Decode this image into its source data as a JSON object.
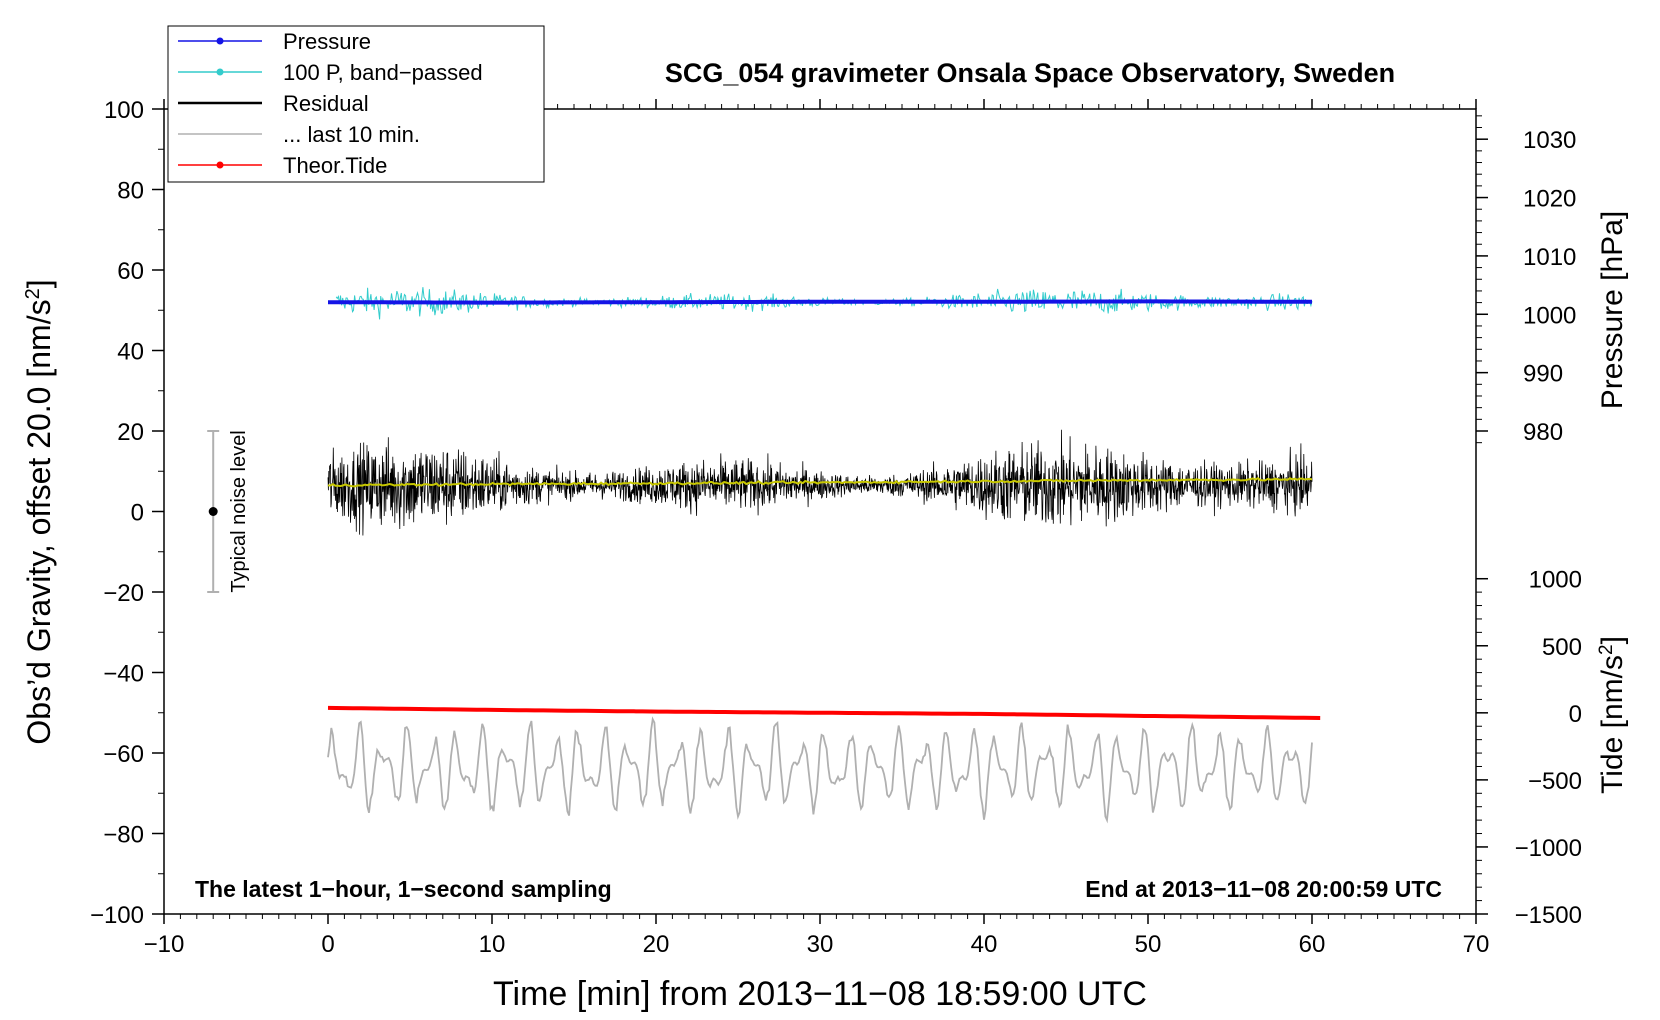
{
  "chart_data": {
    "type": "line",
    "title": "SCG_054 gravimeter Onsala Space Observatory, Sweden",
    "xlabel": "Time [min] from 2013−11−08 18:59:00 UTC",
    "ylabel_left": "Obs’d Gravity, offset 20.0 [nm/s",
    "ylabel_left_sup": "2",
    "ylabel_left_close": "]",
    "ylabel_pressure": "Pressure [hPa]",
    "ylabel_tide": "Tide [nm/s",
    "ylabel_tide_sup": "2",
    "ylabel_tide_close": "]",
    "xlim": [
      -10,
      70
    ],
    "ylim": [
      -100,
      100
    ],
    "x_ticks": [
      -10,
      0,
      10,
      20,
      30,
      40,
      50,
      60,
      70
    ],
    "x_tick_labels": [
      "−10",
      "0",
      "10",
      "20",
      "30",
      "40",
      "50",
      "60",
      "70"
    ],
    "y_ticks": [
      -100,
      -80,
      -60,
      -40,
      -20,
      0,
      20,
      40,
      60,
      80,
      100
    ],
    "y_tick_labels": [
      "−100",
      "−80",
      "−60",
      "−40",
      "−20",
      "0",
      "20",
      "40",
      "60",
      "80",
      "100"
    ],
    "pressure_axis": {
      "ticks": [
        980,
        990,
        1000,
        1010,
        1020,
        1030
      ],
      "tick_labels": [
        "980",
        "990",
        "1000",
        "1010",
        "1020",
        "1030"
      ],
      "g_at_980": 20,
      "g_at_1030": 92.5
    },
    "tide_axis": {
      "ticks": [
        -1500,
        -1000,
        -500,
        0,
        500,
        1000
      ],
      "tick_labels": [
        "−1500",
        "−1000",
        "−500",
        "0",
        "500",
        "1000"
      ],
      "g_at_minus1500": -100,
      "g_at_1000": -16.7
    },
    "legend": {
      "position": "top-left",
      "entries": [
        {
          "label": "Pressure",
          "color": "#1414e6",
          "marker": true
        },
        {
          "label": "100 P, band−passed",
          "color": "#33cccc",
          "marker": true
        },
        {
          "label": "Residual",
          "color": "#000000",
          "marker": false
        },
        {
          "label": "... last 10 min.",
          "color": "#b0b0b0",
          "marker": false
        },
        {
          "label": "Theor.Tide",
          "color": "#ff0000",
          "marker": true
        }
      ]
    },
    "annotations": {
      "bottom_left": "The latest 1−hour, 1−second sampling",
      "bottom_right": "End at 2013−11−08 20:00:59 UTC",
      "noise_label": "Typical noise level"
    },
    "noise_bar": {
      "x": -7,
      "center": 0,
      "low": -20,
      "high": 20
    },
    "series": [
      {
        "name": "Pressure",
        "color": "#1414e6",
        "x": [
          0,
          10,
          20,
          30,
          40,
          50,
          60
        ],
        "values": [
          52.0,
          51.9,
          52.0,
          52.1,
          52.1,
          52.2,
          52.1
        ]
      },
      {
        "name": "100 P, band-passed",
        "color": "#33cccc",
        "center": 52,
        "x_start": 0.5,
        "x_end": 60,
        "spread": 4
      },
      {
        "name": "Residual",
        "color": "#000000",
        "center": 6.5,
        "x_start": 0,
        "x_end": 60,
        "spread": 13
      },
      {
        "name": "Residual smoothed",
        "color": "#c8c800",
        "x": [
          0,
          10,
          20,
          30,
          40,
          50,
          60
        ],
        "values": [
          6.5,
          6.8,
          7.0,
          7.2,
          7.5,
          7.8,
          8.0
        ]
      },
      {
        "name": "... last 10 min.",
        "color": "#b0b0b0",
        "center": -64,
        "x_start": 0,
        "x_end": 60,
        "spread": 12
      },
      {
        "name": "Theor.Tide",
        "color": "#ff0000",
        "x": [
          0,
          10,
          20,
          30,
          40,
          50,
          60.5
        ],
        "values": [
          -48.8,
          -49.3,
          -49.7,
          -50.0,
          -50.3,
          -50.8,
          -51.3
        ]
      }
    ]
  }
}
